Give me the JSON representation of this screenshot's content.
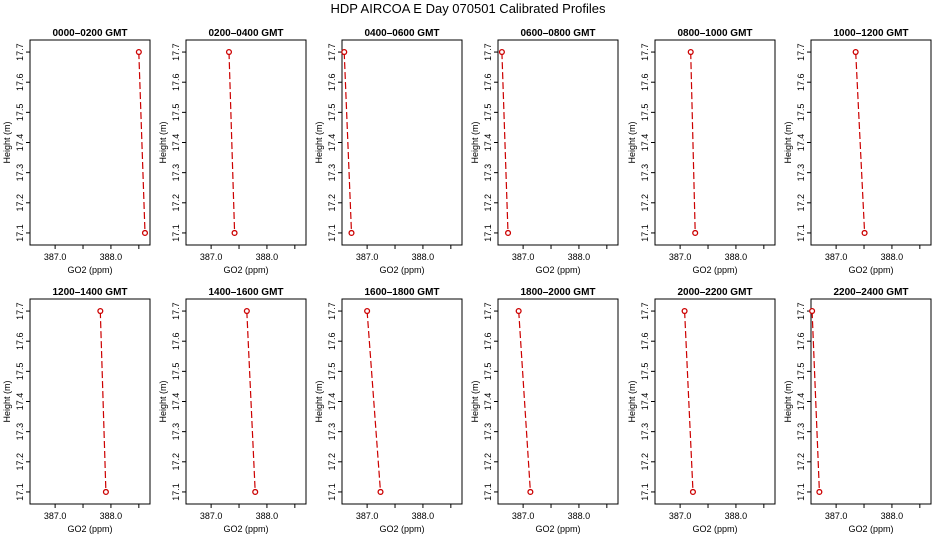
{
  "title": "HDP  AIRCOA E  Day 070501  Calibrated Profiles",
  "colors": {
    "series": "#cc0000",
    "axis": "#000000"
  },
  "chart_data": [
    {
      "type": "line",
      "title": "0000–0200 GMT",
      "xlabel": "GO2 (ppm)",
      "ylabel": "Height (m)",
      "xlim": [
        386.55,
        388.7
      ],
      "ylim": [
        17.06,
        17.74
      ],
      "xticks": [
        "387.0",
        "388.0"
      ],
      "yticks": [
        "17.1",
        "17.2",
        "17.3",
        "17.4",
        "17.5",
        "17.6",
        "17.7"
      ],
      "grid": false,
      "series": [
        {
          "x": [
            388.5,
            388.61
          ],
          "y": [
            17.7,
            17.1
          ]
        }
      ]
    },
    {
      "type": "line",
      "title": "0200–0400 GMT",
      "xlabel": "GO2 (ppm)",
      "ylabel": "Height (m)",
      "xlim": [
        386.55,
        388.7
      ],
      "ylim": [
        17.06,
        17.74
      ],
      "xticks": [
        "387.0",
        "388.0"
      ],
      "yticks": [
        "17.1",
        "17.2",
        "17.3",
        "17.4",
        "17.5",
        "17.6",
        "17.7"
      ],
      "grid": false,
      "series": [
        {
          "x": [
            387.32,
            387.42
          ],
          "y": [
            17.7,
            17.1
          ]
        }
      ]
    },
    {
      "type": "line",
      "title": "0400–0600 GMT",
      "xlabel": "GO2 (ppm)",
      "ylabel": "Height (m)",
      "xlim": [
        386.55,
        388.7
      ],
      "ylim": [
        17.06,
        17.74
      ],
      "xticks": [
        "387.0",
        "388.0"
      ],
      "yticks": [
        "17.1",
        "17.2",
        "17.3",
        "17.4",
        "17.5",
        "17.6",
        "17.7"
      ],
      "grid": false,
      "series": [
        {
          "x": [
            386.59,
            386.72
          ],
          "y": [
            17.7,
            17.1
          ]
        }
      ]
    },
    {
      "type": "line",
      "title": "0600–0800 GMT",
      "xlabel": "GO2 (ppm)",
      "ylabel": "Height (m)",
      "xlim": [
        386.55,
        388.7
      ],
      "ylim": [
        17.06,
        17.74
      ],
      "xticks": [
        "387.0",
        "388.0"
      ],
      "yticks": [
        "17.1",
        "17.2",
        "17.3",
        "17.4",
        "17.5",
        "17.6",
        "17.7"
      ],
      "grid": false,
      "series": [
        {
          "x": [
            386.62,
            386.73
          ],
          "y": [
            17.7,
            17.1
          ]
        }
      ]
    },
    {
      "type": "line",
      "title": "0800–1000 GMT",
      "xlabel": "GO2 (ppm)",
      "ylabel": "Height (m)",
      "xlim": [
        386.55,
        388.7
      ],
      "ylim": [
        17.06,
        17.74
      ],
      "xticks": [
        "387.0",
        "388.0"
      ],
      "yticks": [
        "17.1",
        "17.2",
        "17.3",
        "17.4",
        "17.5",
        "17.6",
        "17.7"
      ],
      "grid": false,
      "series": [
        {
          "x": [
            387.19,
            387.27
          ],
          "y": [
            17.7,
            17.1
          ]
        }
      ]
    },
    {
      "type": "line",
      "title": "1000–1200 GMT",
      "xlabel": "GO2 (ppm)",
      "ylabel": "Height (m)",
      "xlim": [
        386.55,
        388.7
      ],
      "ylim": [
        17.06,
        17.74
      ],
      "xticks": [
        "387.0",
        "388.0"
      ],
      "yticks": [
        "17.1",
        "17.2",
        "17.3",
        "17.4",
        "17.5",
        "17.6",
        "17.7"
      ],
      "grid": false,
      "series": [
        {
          "x": [
            387.35,
            387.51
          ],
          "y": [
            17.7,
            17.1
          ]
        }
      ]
    },
    {
      "type": "line",
      "title": "1200–1400 GMT",
      "xlabel": "GO2 (ppm)",
      "ylabel": "Height (m)",
      "xlim": [
        386.55,
        388.7
      ],
      "ylim": [
        17.06,
        17.74
      ],
      "xticks": [
        "387.0",
        "388.0"
      ],
      "yticks": [
        "17.1",
        "17.2",
        "17.3",
        "17.4",
        "17.5",
        "17.6",
        "17.7"
      ],
      "grid": false,
      "series": [
        {
          "x": [
            387.81,
            387.91
          ],
          "y": [
            17.7,
            17.1
          ]
        }
      ]
    },
    {
      "type": "line",
      "title": "1400–1600 GMT",
      "xlabel": "GO2 (ppm)",
      "ylabel": "Height (m)",
      "xlim": [
        386.55,
        388.7
      ],
      "ylim": [
        17.06,
        17.74
      ],
      "xticks": [
        "387.0",
        "388.0"
      ],
      "yticks": [
        "17.1",
        "17.2",
        "17.3",
        "17.4",
        "17.5",
        "17.6",
        "17.7"
      ],
      "grid": false,
      "series": [
        {
          "x": [
            387.64,
            387.79
          ],
          "y": [
            17.7,
            17.1
          ]
        }
      ]
    },
    {
      "type": "line",
      "title": "1600–1800 GMT",
      "xlabel": "GO2 (ppm)",
      "ylabel": "Height (m)",
      "xlim": [
        386.55,
        388.7
      ],
      "ylim": [
        17.06,
        17.74
      ],
      "xticks": [
        "387.0",
        "388.0"
      ],
      "yticks": [
        "17.1",
        "17.2",
        "17.3",
        "17.4",
        "17.5",
        "17.6",
        "17.7"
      ],
      "grid": false,
      "series": [
        {
          "x": [
            387.0,
            387.24
          ],
          "y": [
            17.7,
            17.1
          ]
        }
      ]
    },
    {
      "type": "line",
      "title": "1800–2000 GMT",
      "xlabel": "GO2 (ppm)",
      "ylabel": "Height (m)",
      "xlim": [
        386.55,
        388.7
      ],
      "ylim": [
        17.06,
        17.74
      ],
      "xticks": [
        "387.0",
        "388.0"
      ],
      "yticks": [
        "17.1",
        "17.2",
        "17.3",
        "17.4",
        "17.5",
        "17.6",
        "17.7"
      ],
      "grid": false,
      "series": [
        {
          "x": [
            386.92,
            387.13
          ],
          "y": [
            17.7,
            17.1
          ]
        }
      ]
    },
    {
      "type": "line",
      "title": "2000–2200 GMT",
      "xlabel": "GO2 (ppm)",
      "ylabel": "Height (m)",
      "xlim": [
        386.55,
        388.7
      ],
      "ylim": [
        17.06,
        17.74
      ],
      "xticks": [
        "387.0",
        "388.0"
      ],
      "yticks": [
        "17.1",
        "17.2",
        "17.3",
        "17.4",
        "17.5",
        "17.6",
        "17.7"
      ],
      "grid": false,
      "series": [
        {
          "x": [
            387.08,
            387.23
          ],
          "y": [
            17.7,
            17.1
          ]
        }
      ]
    },
    {
      "type": "line",
      "title": "2200–2400 GMT",
      "xlabel": "GO2 (ppm)",
      "ylabel": "Height (m)",
      "xlim": [
        386.55,
        388.7
      ],
      "ylim": [
        17.06,
        17.74
      ],
      "xticks": [
        "387.0",
        "388.0"
      ],
      "yticks": [
        "17.1",
        "17.2",
        "17.3",
        "17.4",
        "17.5",
        "17.6",
        "17.7"
      ],
      "grid": false,
      "series": [
        {
          "x": [
            386.57,
            386.7
          ],
          "y": [
            17.7,
            17.1
          ]
        }
      ]
    }
  ]
}
